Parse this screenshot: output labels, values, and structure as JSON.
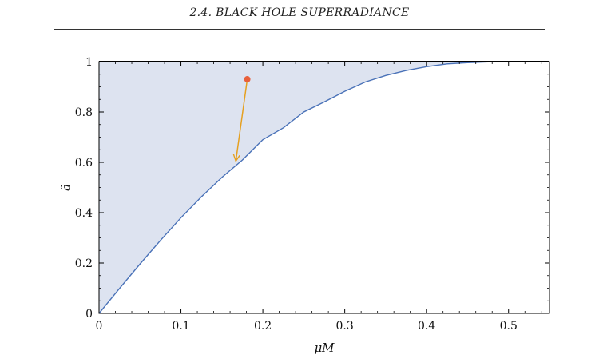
{
  "header": {
    "title": "2.4.  BLACK HOLE SUPERRADIANCE"
  },
  "chart_data": {
    "type": "area",
    "xlabel": "μM",
    "ylabel": "ã",
    "xlim": [
      0,
      0.55
    ],
    "ylim": [
      0,
      1
    ],
    "xticks": [
      0,
      0.1,
      0.2,
      0.3,
      0.4,
      0.5
    ],
    "xtick_labels": [
      "0",
      "0.1",
      "0.2",
      "0.3",
      "0.4",
      "0.5"
    ],
    "yticks": [
      0,
      0.2,
      0.4,
      0.6,
      0.8,
      1
    ],
    "ytick_labels": [
      "0",
      "0.2",
      "0.4",
      "0.6",
      "0.8",
      "1"
    ],
    "grid": false,
    "boundary_curve": {
      "x": [
        0,
        0.025,
        0.05,
        0.075,
        0.1,
        0.125,
        0.15,
        0.175,
        0.2,
        0.225,
        0.25,
        0.275,
        0.3,
        0.325,
        0.35,
        0.375,
        0.4,
        0.425,
        0.45,
        0.475,
        0.5
      ],
      "y": [
        0,
        0.099,
        0.196,
        0.29,
        0.38,
        0.463,
        0.54,
        0.609,
        0.69,
        0.737,
        0.8,
        0.84,
        0.882,
        0.919,
        0.945,
        0.965,
        0.98,
        0.991,
        0.996,
        0.999,
        1.0
      ],
      "color": "#4a72b8"
    },
    "shaded_region": {
      "description_color": "#dde3f0",
      "bounded_by": "boundary_curve and ã = 1"
    },
    "top_line": {
      "y": 1,
      "x_range": [
        0,
        0.55
      ],
      "color": "#000000"
    },
    "start_point": {
      "x": 0.181,
      "y": 0.93,
      "color": "#e8603c"
    },
    "arrow": {
      "from": [
        0.181,
        0.93
      ],
      "to": [
        0.167,
        0.605
      ],
      "color": "#e5a020"
    }
  }
}
